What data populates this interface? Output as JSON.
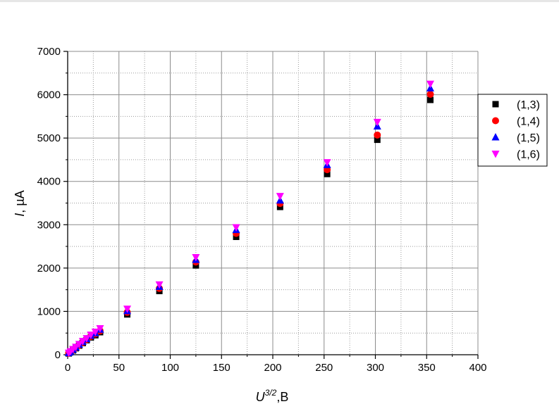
{
  "chart_data": {
    "type": "scatter",
    "xlabel": {
      "main": "U",
      "sup": "3/2",
      "unit": ",B"
    },
    "ylabel": {
      "main": "I",
      "unit": ", µA"
    },
    "xlim": [
      0,
      400
    ],
    "ylim": [
      0,
      7000
    ],
    "x_ticks": [
      "0",
      "50",
      "100",
      "150",
      "200",
      "250",
      "300",
      "350",
      "400"
    ],
    "y_ticks": [
      "0",
      "1000",
      "2000",
      "3000",
      "4000",
      "5000",
      "6000",
      "7000"
    ],
    "grid": true,
    "legend_position": "right",
    "x": [
      1.0,
      2.8,
      5.2,
      8.0,
      11.2,
      14.7,
      18.5,
      22.6,
      27.0,
      31.6,
      58.1,
      89.4,
      125.0,
      164.3,
      207.1,
      253.0,
      301.9,
      353.6
    ],
    "series": [
      {
        "name": "(1,3)",
        "marker": "square",
        "color": "#000000",
        "values": [
          30,
          60,
          100,
          150,
          210,
          270,
          335,
          400,
          450,
          520,
          930,
          1470,
          2060,
          2720,
          3410,
          4170,
          4960,
          5880
        ]
      },
      {
        "name": "(1,4)",
        "marker": "circle",
        "color": "#ff0000",
        "values": [
          35,
          65,
          110,
          160,
          220,
          285,
          350,
          420,
          480,
          550,
          980,
          1530,
          2140,
          2800,
          3490,
          4270,
          5070,
          6010
        ]
      },
      {
        "name": "(1,5)",
        "marker": "triangle-up",
        "color": "#0000ff",
        "values": [
          40,
          70,
          120,
          170,
          235,
          300,
          365,
          440,
          500,
          580,
          1010,
          1570,
          2190,
          2880,
          3560,
          4380,
          5270,
          6150
        ]
      },
      {
        "name": "(1,6)",
        "marker": "triangle-down",
        "color": "#ff00ff",
        "values": [
          45,
          80,
          130,
          180,
          245,
          315,
          380,
          460,
          530,
          610,
          1060,
          1620,
          2250,
          2940,
          3660,
          4440,
          5370,
          6250
        ]
      }
    ]
  }
}
